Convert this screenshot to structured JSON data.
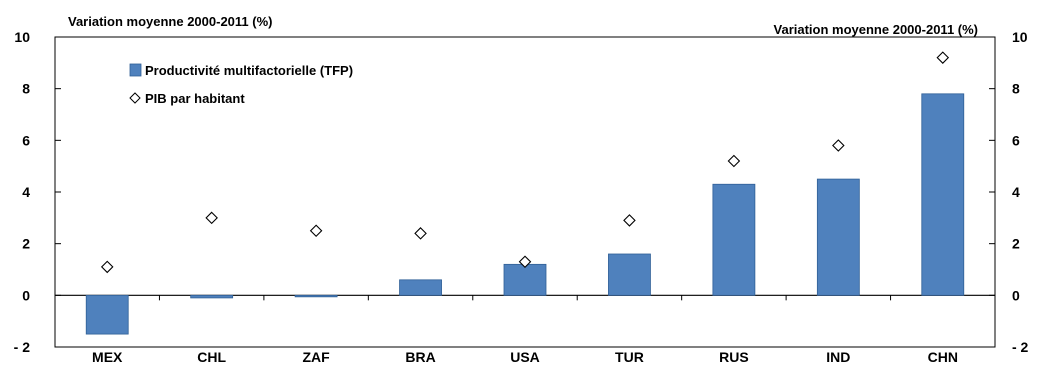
{
  "chart_data": {
    "type": "bar",
    "categories": [
      "MEX",
      "CHL",
      "ZAF",
      "BRA",
      "USA",
      "TUR",
      "RUS",
      "IND",
      "CHN"
    ],
    "series": [
      {
        "name": "Productivité multifactorielle (TFP)",
        "kind": "bar",
        "values": [
          -1.5,
          -0.1,
          0.0,
          0.6,
          1.2,
          1.6,
          4.3,
          4.5,
          7.8
        ]
      },
      {
        "name": "PIB par habitant",
        "kind": "marker-diamond",
        "values": [
          1.1,
          3.0,
          2.5,
          2.4,
          1.3,
          2.9,
          5.2,
          5.8,
          9.2
        ]
      }
    ],
    "ylabel_left": "Variation moyenne 2000-2011 (%)",
    "ylabel_right": "Variation moyenne 2000-2011 (%)",
    "ylim": [
      -2,
      10
    ],
    "yticks": [
      -2,
      0,
      2,
      4,
      6,
      8,
      10
    ],
    "ytick_labels": [
      "- 2",
      "0",
      "2",
      "4",
      "6",
      "8",
      "10"
    ],
    "grid": false,
    "legend_position": "top-left",
    "colors": {
      "bar": "#4f81bd",
      "bar_edge": "#2f5f96",
      "marker": "#000000",
      "axis": "#000000"
    }
  }
}
